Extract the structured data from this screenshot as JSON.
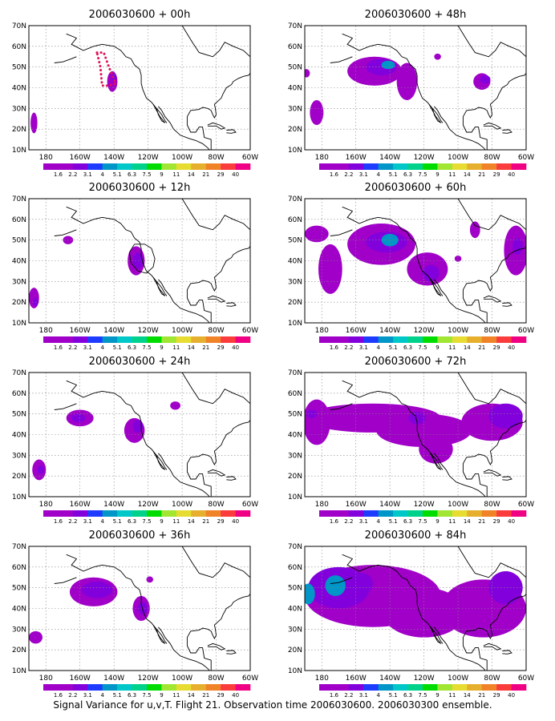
{
  "footer": "Signal Variance for u,v,T. Flight 21. Observation time 2006030600. 2006030300 ensemble.",
  "colorbar": {
    "labels": [
      "1.6",
      "2.2",
      "3.1",
      "4",
      "5.1",
      "6.3",
      "7.5",
      "9",
      "11",
      "14",
      "21",
      "29",
      "40"
    ],
    "colors": [
      "#a000c8",
      "#8200dc",
      "#1e3cff",
      "#0096c8",
      "#00c8c8",
      "#00d28c",
      "#00dc00",
      "#a0e632",
      "#e6dc32",
      "#e6af2d",
      "#f08228",
      "#fa3c3c",
      "#f00082"
    ]
  },
  "axes": {
    "lat_labels": [
      "70N",
      "60N",
      "50N",
      "40N",
      "30N",
      "20N",
      "10N"
    ],
    "lon_labels": [
      "180",
      "160W",
      "140W",
      "120W",
      "100W",
      "80W",
      "60W"
    ]
  },
  "panels": [
    {
      "title": "2006030600 + 00h"
    },
    {
      "title": "2006030600 + 48h"
    },
    {
      "title": "2006030600 + 12h"
    },
    {
      "title": "2006030600 + 60h"
    },
    {
      "title": "2006030600 + 24h"
    },
    {
      "title": "2006030600 + 72h"
    },
    {
      "title": "2006030600 + 36h"
    },
    {
      "title": "2006030600 + 84h"
    }
  ]
}
